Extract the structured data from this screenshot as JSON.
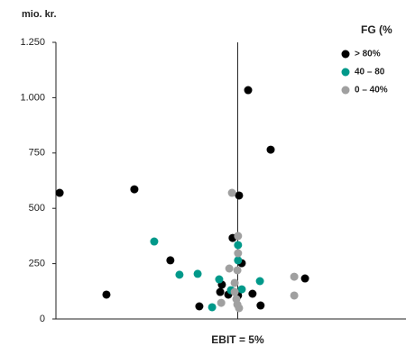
{
  "chart_data": {
    "type": "scatter",
    "y_label": "mio. kr.",
    "x_label": "EBIT = 5%",
    "ref_x": 5,
    "legend_title": "FG (%",
    "legend": "top-right",
    "xlim": [
      -0.4,
      10
    ],
    "ylim": [
      0,
      1250
    ],
    "yticks": [
      0,
      250,
      500,
      750,
      {
        "value": 1000,
        "label": "1.000"
      },
      {
        "value": 1250,
        "label": "1.250"
      }
    ],
    "grid": false,
    "series": [
      {
        "name": "> 80%",
        "color": "#000000",
        "x": [
          -0.29,
          1.1,
          1.93,
          3.0,
          3.86,
          5.04,
          4.85,
          5.31,
          5.98,
          7.0,
          5.68,
          5.44,
          4.48,
          4.53,
          4.72,
          5.12,
          5.01
        ],
        "values": [
          570,
          110,
          586,
          265,
          57,
          558,
          366,
          1034,
          765,
          183,
          61,
          114,
          122,
          155,
          110,
          252,
          106
        ]
      },
      {
        "name": "40 – 80",
        "color": "#00998a",
        "x": [
          2.52,
          3.27,
          3.81,
          4.24,
          5.01,
          5.01,
          5.66,
          4.45,
          4.8,
          5.12
        ],
        "values": [
          350,
          200,
          204,
          53,
          334,
          265,
          171,
          179,
          130,
          134
        ]
      },
      {
        "name": "0 – 40%",
        "color": "#a0a0a0",
        "x": [
          4.83,
          5.01,
          5.01,
          4.99,
          4.75,
          4.51,
          4.91,
          4.96,
          4.99,
          6.68,
          6.68,
          4.91,
          5.04
        ],
        "values": [
          570,
          375,
          297,
          220,
          228,
          73,
          163,
          90,
          65,
          191,
          106,
          122,
          49
        ]
      }
    ]
  }
}
